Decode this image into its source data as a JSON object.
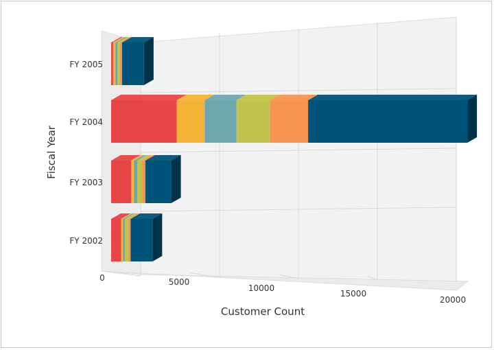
{
  "chart_data": {
    "type": "bar",
    "orientation": "horizontal",
    "stacked": true,
    "three_d": true,
    "xlabel": "Customer Count",
    "ylabel": "Fiscal Year",
    "xlim": [
      0,
      20000
    ],
    "x_ticks": [
      "0",
      "5000",
      "10000",
      "15000",
      "20000"
    ],
    "categories": [
      "FY 2002",
      "FY 2003",
      "FY 2004",
      "FY 2005"
    ],
    "series_colors": [
      "#e84646",
      "#f5b335",
      "#6fa7b1",
      "#c2c34c",
      "#f8944f",
      "#005378"
    ],
    "series": [
      {
        "values": [
          500,
          1000,
          3300,
          100
        ]
      },
      {
        "values": [
          90,
          150,
          1400,
          120
        ]
      },
      {
        "values": [
          110,
          170,
          1600,
          100
        ]
      },
      {
        "values": [
          180,
          250,
          1700,
          120
        ]
      },
      {
        "values": [
          100,
          150,
          1900,
          110
        ]
      },
      {
        "values": [
          1100,
          1300,
          8000,
          1100
        ]
      }
    ],
    "grid": true,
    "legend": "none"
  }
}
